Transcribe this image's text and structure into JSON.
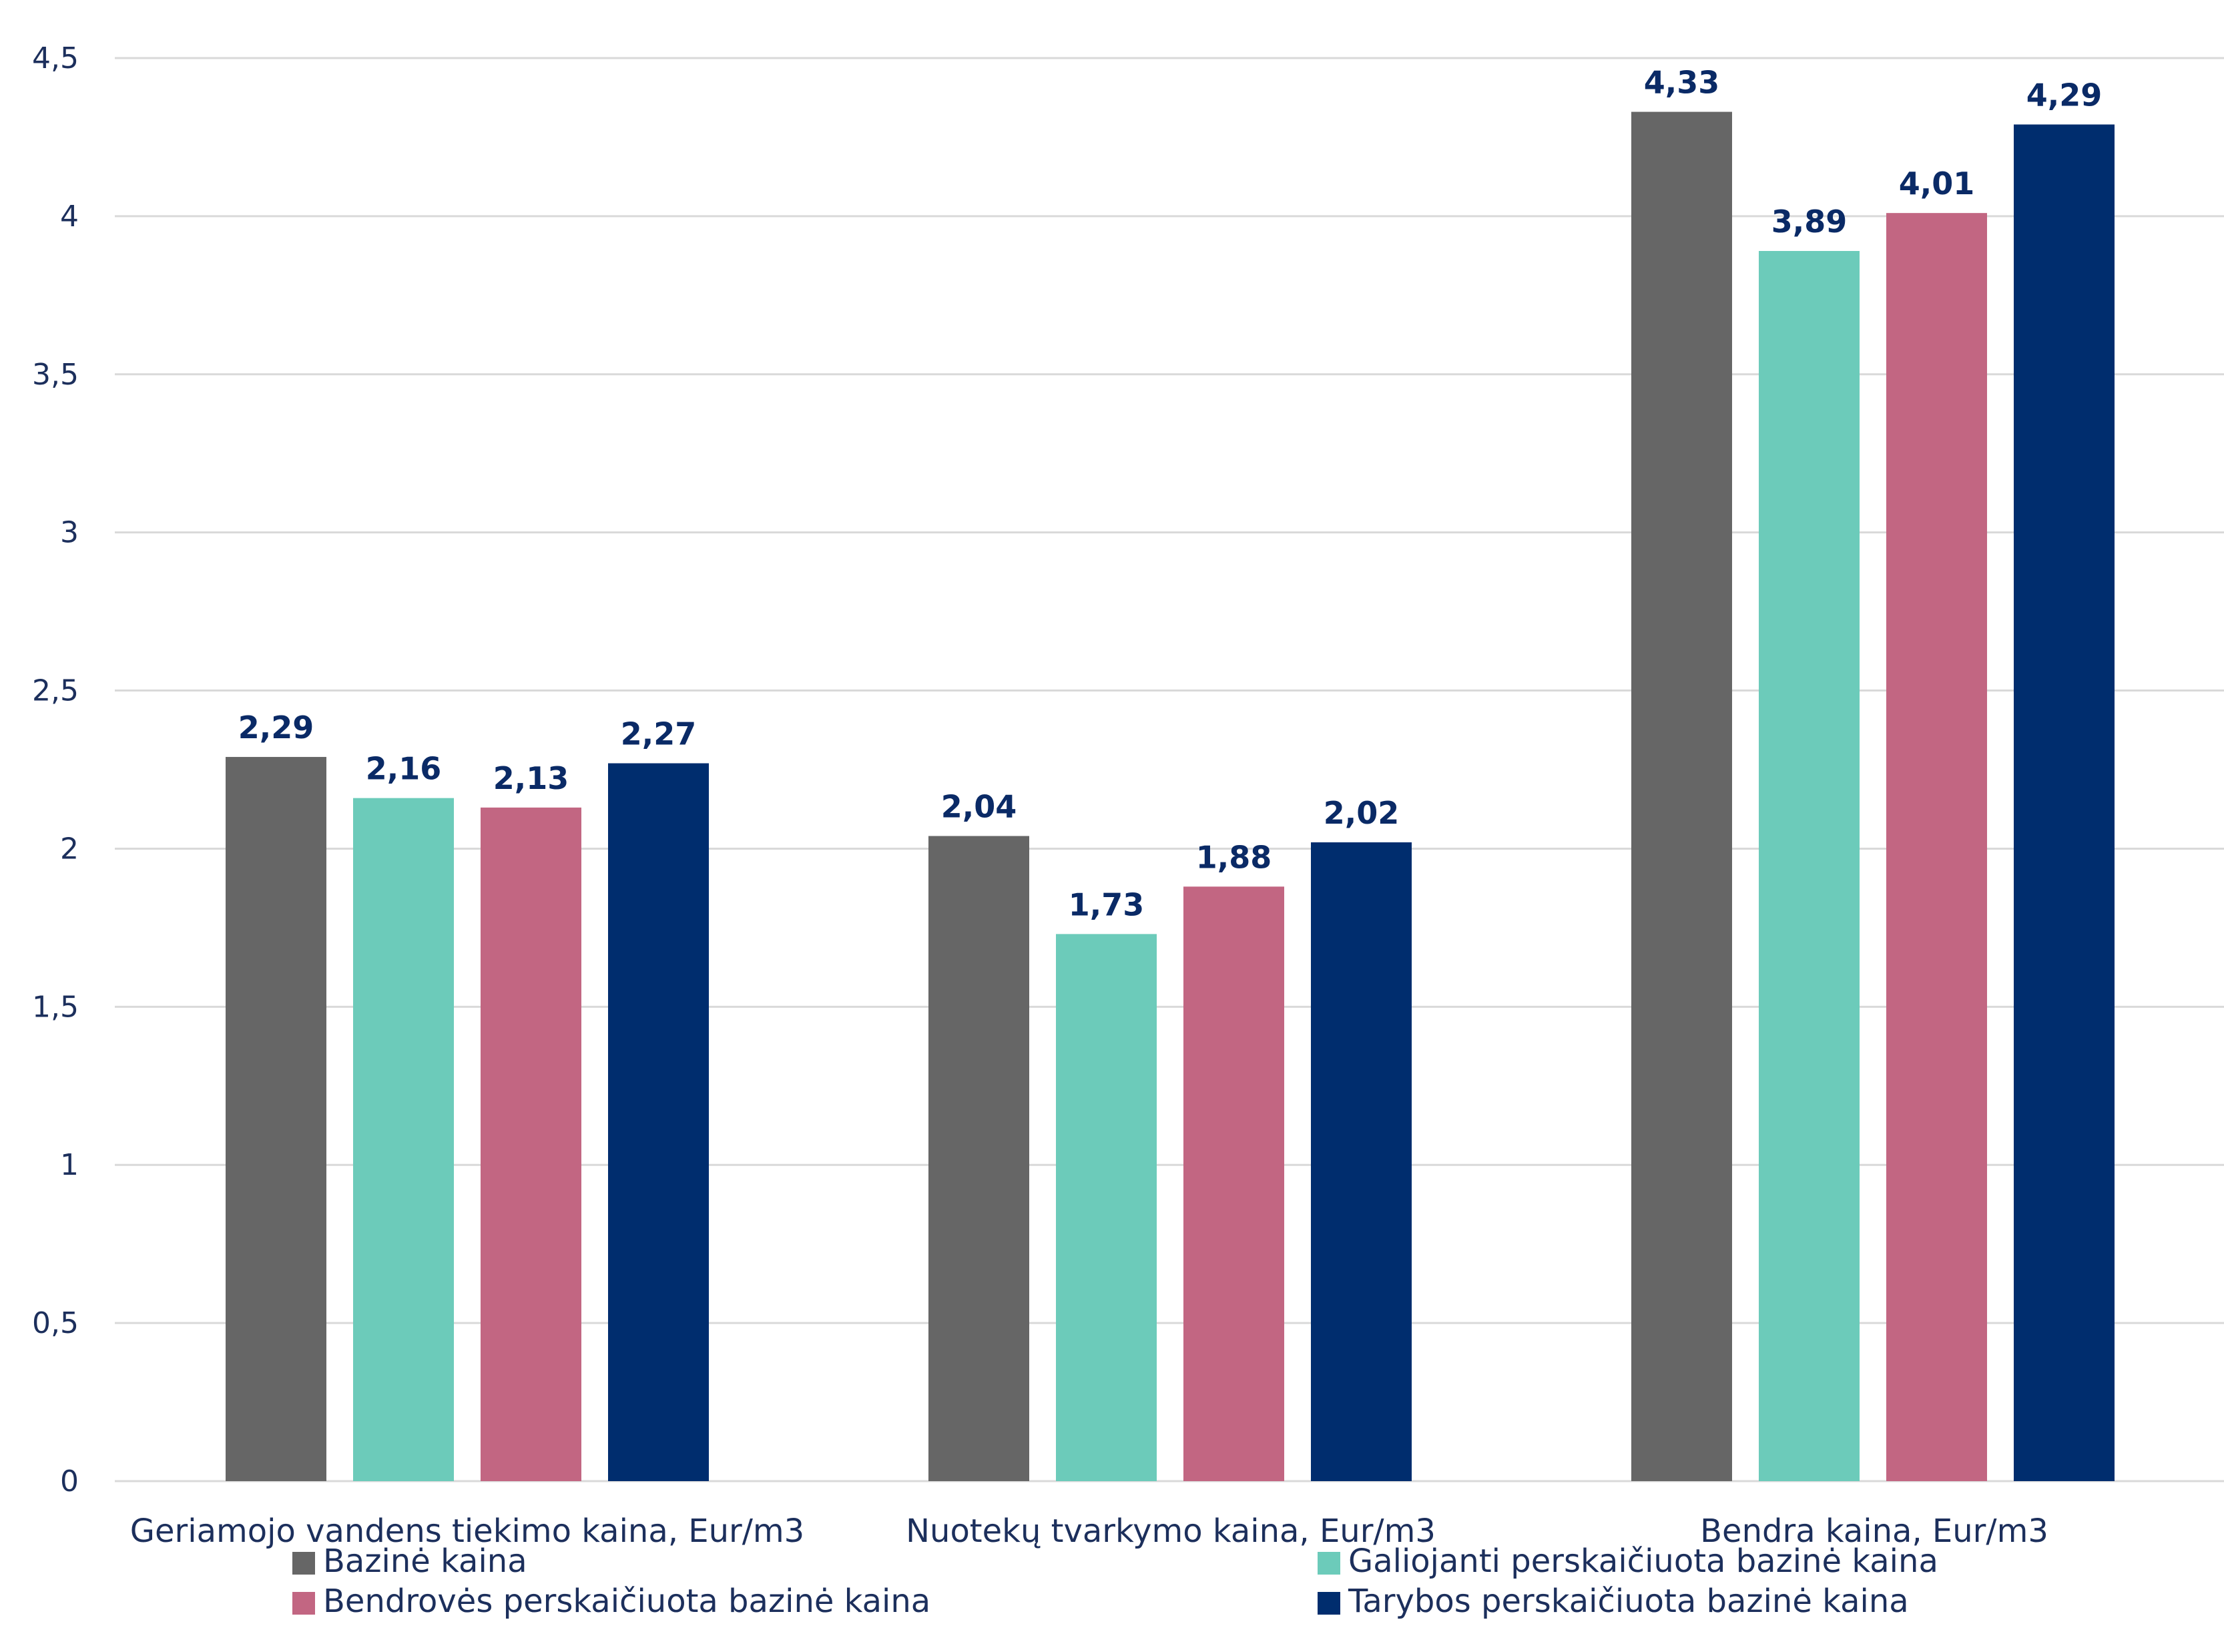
{
  "chart_data": {
    "type": "bar",
    "categories": [
      "Geriamojo vandens tiekimo kaina, Eur/m3",
      "Nuotekų tvarkymo kaina, Eur/m3",
      "Bendra kaina, Eur/m3"
    ],
    "series": [
      {
        "name": "Bazinė kaina",
        "color": "#666666",
        "values": [
          2.29,
          2.04,
          4.33
        ],
        "labels": [
          "2,29",
          "2,04",
          "4,33"
        ]
      },
      {
        "name": "Galiojanti perskaičiuota bazinė kaina",
        "color": "#6ccbba",
        "values": [
          2.16,
          1.73,
          3.89
        ],
        "labels": [
          "2,16",
          "1,73",
          "3,89"
        ]
      },
      {
        "name": "Bendrovės perskaičiuota bazinė kaina",
        "color": "#c26682",
        "values": [
          2.13,
          1.88,
          4.01
        ],
        "labels": [
          "2,13",
          "1,88",
          "4,01"
        ]
      },
      {
        "name": "Tarybos perskaičiuota bazinė kaina",
        "color": "#002d6e",
        "values": [
          2.27,
          2.02,
          4.29
        ],
        "labels": [
          "2,27",
          "2,02",
          "4,29"
        ]
      }
    ],
    "ylim": [
      0,
      4.5
    ],
    "yticks": [
      {
        "value": 0,
        "label": "0"
      },
      {
        "value": 0.5,
        "label": "0,5"
      },
      {
        "value": 1,
        "label": "1"
      },
      {
        "value": 1.5,
        "label": "1,5"
      },
      {
        "value": 2,
        "label": "2"
      },
      {
        "value": 2.5,
        "label": "2,5"
      },
      {
        "value": 3,
        "label": "3"
      },
      {
        "value": 3.5,
        "label": "3,5"
      },
      {
        "value": 4,
        "label": "4"
      },
      {
        "value": 4.5,
        "label": "4,5"
      }
    ],
    "grid": true,
    "legend_position": "bottom",
    "title": "",
    "xlabel": "",
    "ylabel": ""
  }
}
